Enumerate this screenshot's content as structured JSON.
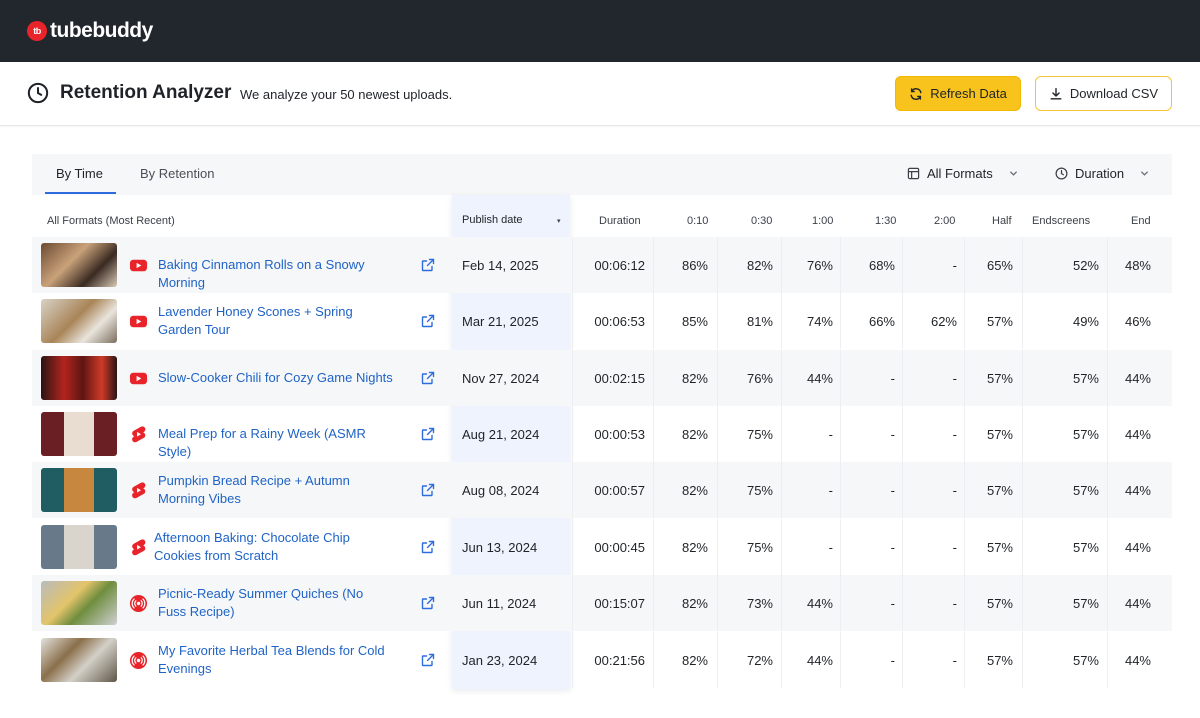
{
  "brand": {
    "name": "tubebuddy",
    "badge": "tb",
    "color": "#e8232a"
  },
  "header": {
    "title": "Retention Analyzer",
    "subtitle": "We analyze your 50 newest uploads.",
    "refresh_label": "Refresh Data",
    "download_label": "Download CSV"
  },
  "tabs": [
    {
      "label": "By Time",
      "active": true
    },
    {
      "label": "By Retention",
      "active": false
    }
  ],
  "filters": {
    "format": "All Formats",
    "duration": "Duration"
  },
  "columns": {
    "video": "All Formats (Most Recent)",
    "publish": "Publish date",
    "duration": "Duration",
    "t010": "0:10",
    "t030": "0:30",
    "t100": "1:00",
    "t130": "1:30",
    "t200": "2:00",
    "half": "Half",
    "endscreens": "Endscreens",
    "end": "End"
  },
  "rows": [
    {
      "title": "Baking Cinnamon Rolls on a Snowy Morning",
      "platform": "youtube-icon",
      "date": "Feb 14, 2025",
      "duration": "00:06:12",
      "t010": "86%",
      "t030": "82%",
      "t100": "76%",
      "t130": "68%",
      "t200": "-",
      "half": "65%",
      "endscreens": "52%",
      "end": "48%"
    },
    {
      "title": "Lavender Honey Scones + Spring Garden Tour",
      "platform": "youtube-icon",
      "date": "Mar 21, 2025",
      "duration": "00:06:53",
      "t010": "85%",
      "t030": "81%",
      "t100": "74%",
      "t130": "66%",
      "t200": "62%",
      "half": "57%",
      "endscreens": "49%",
      "end": "46%"
    },
    {
      "title": "Slow-Cooker Chili for Cozy Game Nights",
      "platform": "youtube-icon",
      "date": "Nov 27, 2024",
      "duration": "00:02:15",
      "t010": "82%",
      "t030": "76%",
      "t100": "44%",
      "t130": "-",
      "t200": "-",
      "half": "57%",
      "endscreens": "57%",
      "end": "44%"
    },
    {
      "title": "Meal Prep for a Rainy Week (ASMR Style)",
      "platform": "shorts-icon",
      "date": "Aug 21, 2024",
      "duration": "00:00:53",
      "t010": "82%",
      "t030": "75%",
      "t100": "-",
      "t130": "-",
      "t200": "-",
      "half": "57%",
      "endscreens": "57%",
      "end": "44%"
    },
    {
      "title": "Pumpkin Bread Recipe + Autumn Morning Vibes",
      "platform": "shorts-icon",
      "date": "Aug 08, 2024",
      "duration": "00:00:57",
      "t010": "82%",
      "t030": "75%",
      "t100": "-",
      "t130": "-",
      "t200": "-",
      "half": "57%",
      "endscreens": "57%",
      "end": "44%"
    },
    {
      "title": "Afternoon Baking: Chocolate Chip Cookies from Scratch",
      "platform": "shorts-icon",
      "date": "Jun 13, 2024",
      "duration": "00:00:45",
      "t010": "82%",
      "t030": "75%",
      "t100": "-",
      "t130": "-",
      "t200": "-",
      "half": "57%",
      "endscreens": "57%",
      "end": "44%"
    },
    {
      "title": "Picnic-Ready Summer Quiches (No Fuss Recipe)",
      "platform": "live-icon",
      "date": "Jun 11, 2024",
      "duration": "00:15:07",
      "t010": "82%",
      "t030": "73%",
      "t100": "44%",
      "t130": "-",
      "t200": "-",
      "half": "57%",
      "endscreens": "57%",
      "end": "44%"
    },
    {
      "title": "My Favorite Herbal Tea Blends for Cold Evenings",
      "platform": "live-icon",
      "date": "Jan 23, 2024",
      "duration": "00:21:56",
      "t010": "82%",
      "t030": "72%",
      "t100": "44%",
      "t130": "-",
      "t200": "-",
      "half": "57%",
      "endscreens": "57%",
      "end": "44%"
    }
  ]
}
